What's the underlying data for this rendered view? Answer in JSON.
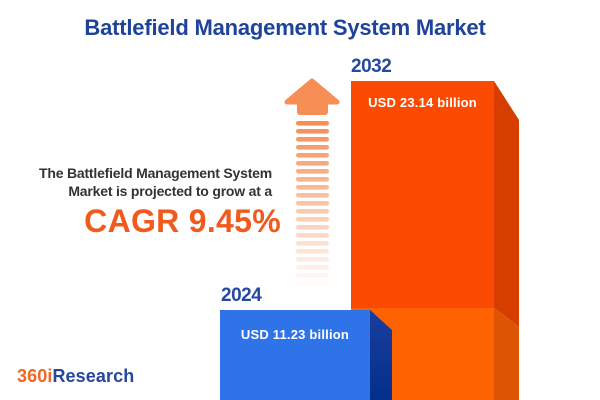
{
  "title": "Battlefield Management System Market",
  "annotation": {
    "line1": "The Battlefield Management System",
    "line2": "Market is projected to grow at a",
    "cagr": "CAGR 9.45%"
  },
  "bars": {
    "y2032": {
      "year": "2032",
      "value_label": "USD 23.14 billion"
    },
    "y2024": {
      "year": "2024",
      "value_label": "USD 11.23 billion"
    }
  },
  "logo": {
    "prefix": "360i",
    "suffix": "Research"
  },
  "colors": {
    "title-blue": "#1D4499",
    "year-blue": "#26489F",
    "cagr-orange": "#F2591D",
    "text-dark": "#333333",
    "bar-label-white": "#FFFFFF",
    "orange-front-top": "#FB4A01",
    "orange-front-bottom": "#FF6200",
    "orange-side-top": "#D63E00",
    "orange-side-bottom": "#DC5404",
    "blue-front": "#2E73E8",
    "navy-side-top": "#1B3D9E",
    "navy-side-bottom": "#03308A",
    "arrow-orange": "#F78E55",
    "logo-orange": "#F26522",
    "logo-blue": "#26479E"
  },
  "chart_data": {
    "type": "bar",
    "title": "Battlefield Management System Market",
    "categories": [
      "2024",
      "2032"
    ],
    "values": [
      11.23,
      23.14
    ],
    "unit": "USD billion",
    "value_labels": [
      "USD 11.23 billion",
      "USD 23.14 billion"
    ],
    "cagr_percent": 9.45,
    "annotation": "The Battlefield Management System Market is projected to grow at a CAGR 9.45%",
    "bar_colors": {
      "2024": "#2E73E8",
      "2032": "#FB4A01"
    },
    "style": "3d-cuboid-bars",
    "legend": false,
    "grid": false,
    "axes": false
  }
}
